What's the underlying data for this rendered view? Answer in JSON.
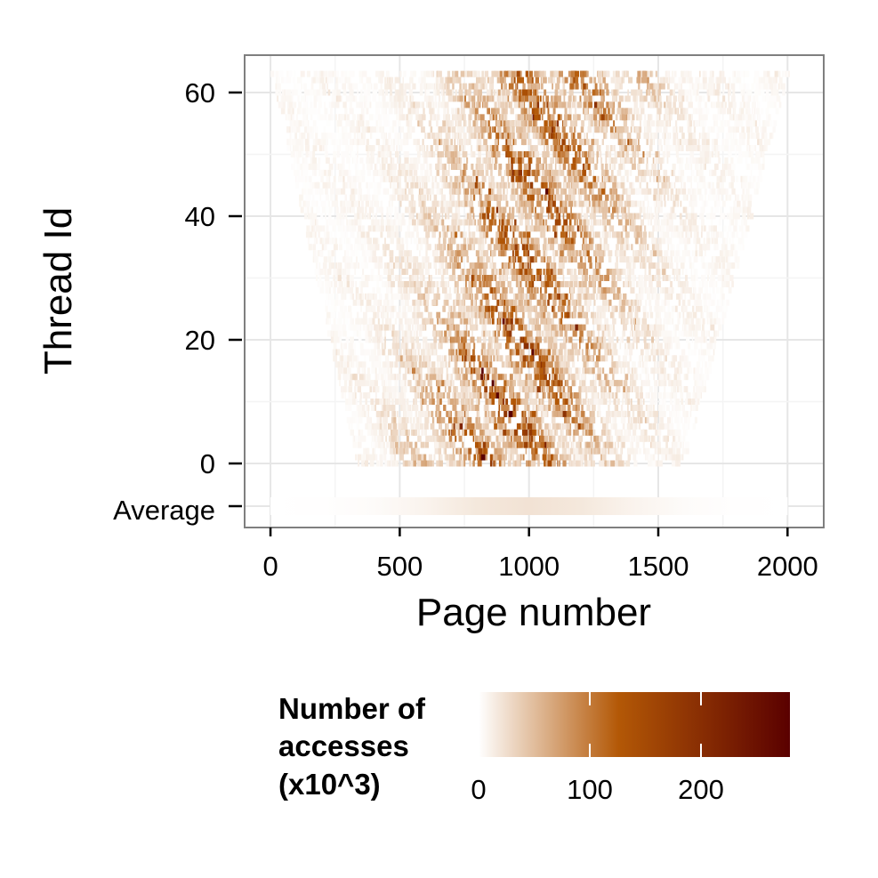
{
  "chart_data": {
    "type": "heatmap",
    "title": "",
    "xlabel": "Page number",
    "ylabel": "Thread Id",
    "xlim": [
      -100,
      2140
    ],
    "x_ticks": [
      0,
      500,
      1000,
      1500,
      2000
    ],
    "x_tick_labels": [
      "0",
      "500",
      "1000",
      "1500",
      "2000"
    ],
    "y_ticks": [
      0,
      20,
      40,
      60
    ],
    "y_tick_labels": [
      "0",
      "20",
      "40",
      "60"
    ],
    "extra_row_label": "Average",
    "threads": [
      0,
      63
    ],
    "pages": [
      0,
      2000
    ],
    "grid": true,
    "colorscale": {
      "title": [
        "Number of",
        "accesses",
        "(x10^3)"
      ],
      "min": 0,
      "max": 280,
      "ticks": [
        0,
        100,
        200
      ],
      "tick_labels": [
        "0",
        "100",
        "200"
      ],
      "colors": [
        "#ffffff",
        "#b35806",
        "#5a0000"
      ]
    },
    "summary": {
      "thread_0_page_range": [
        330,
        1600
      ],
      "thread_63_page_range": [
        0,
        2000
      ],
      "dense_band_center_page": 1000,
      "average_row_peak_value_k": 22
    }
  }
}
